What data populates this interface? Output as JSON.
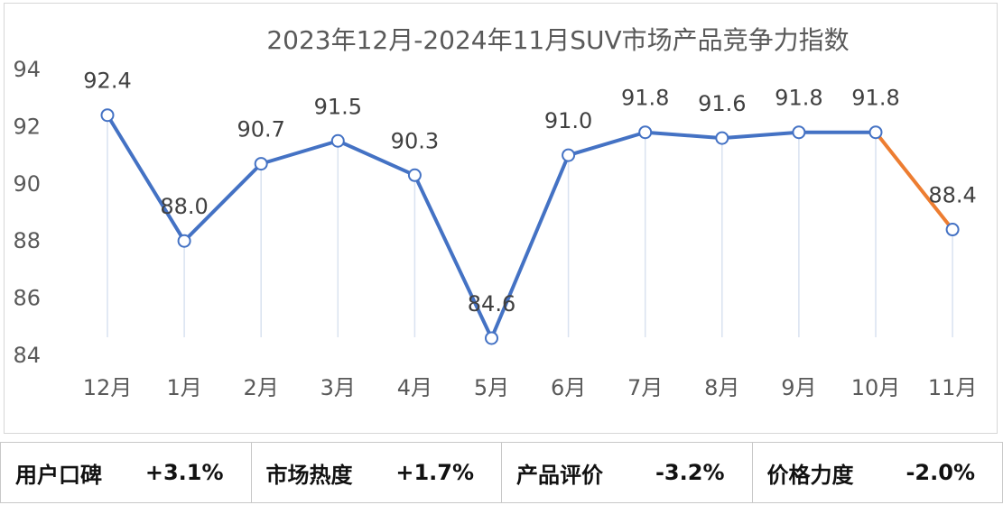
{
  "chart_data": {
    "type": "line",
    "title": "2023年12月-2024年11月SUV市场产品竞争力指数",
    "categories": [
      "12月",
      "1月",
      "2月",
      "3月",
      "4月",
      "5月",
      "6月",
      "7月",
      "8月",
      "9月",
      "10月",
      "11月"
    ],
    "values": [
      92.4,
      88.0,
      90.7,
      91.5,
      90.3,
      84.6,
      91.0,
      91.8,
      91.6,
      91.8,
      91.8,
      88.4
    ],
    "value_labels": [
      "92.4",
      "88.0",
      "90.7",
      "91.5",
      "90.3",
      "84.6",
      "91.0",
      "91.8",
      "91.6",
      "91.8",
      "91.8",
      "88.4"
    ],
    "ylim": [
      84,
      94
    ],
    "yticks": [
      "84",
      "86",
      "88",
      "90",
      "92",
      "94"
    ],
    "grid": false,
    "colors": {
      "line": "#4472c4",
      "last_segment": "#ed7d31",
      "drop_line": "#d9e2f0"
    }
  },
  "metrics": [
    {
      "label": "用户口碑",
      "value": "+3.1%"
    },
    {
      "label": "市场热度",
      "value": "+1.7%"
    },
    {
      "label": "产品评价",
      "value": "-3.2%"
    },
    {
      "label": "价格力度",
      "value": "-2.0%"
    }
  ]
}
